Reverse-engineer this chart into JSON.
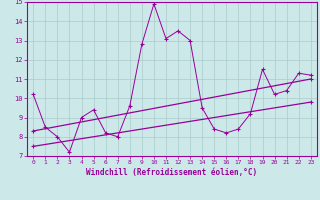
{
  "xlabel": "Windchill (Refroidissement éolien,°C)",
  "xlim": [
    -0.5,
    23.5
  ],
  "ylim": [
    7,
    15
  ],
  "yticks": [
    7,
    8,
    9,
    10,
    11,
    12,
    13,
    14,
    15
  ],
  "xticks": [
    0,
    1,
    2,
    3,
    4,
    5,
    6,
    7,
    8,
    9,
    10,
    11,
    12,
    13,
    14,
    15,
    16,
    17,
    18,
    19,
    20,
    21,
    22,
    23
  ],
  "background_color": "#cce8e8",
  "line_color": "#990099",
  "grid_color": "#aacccc",
  "series1_x": [
    0,
    1,
    2,
    3,
    4,
    5,
    6,
    7,
    8,
    9,
    10,
    11,
    12,
    13,
    14,
    15,
    16,
    17,
    18,
    19,
    20,
    21,
    22,
    23
  ],
  "series1_y": [
    10.2,
    8.5,
    8.0,
    7.2,
    9.0,
    9.4,
    8.2,
    8.0,
    9.6,
    12.8,
    14.9,
    13.1,
    13.5,
    13.0,
    9.5,
    8.4,
    8.2,
    8.4,
    9.2,
    11.5,
    10.2,
    10.4,
    11.3,
    11.2
  ],
  "trend1_x": [
    0,
    23
  ],
  "trend1_y": [
    7.5,
    9.8
  ],
  "trend2_x": [
    0,
    23
  ],
  "trend2_y": [
    8.3,
    11.0
  ]
}
